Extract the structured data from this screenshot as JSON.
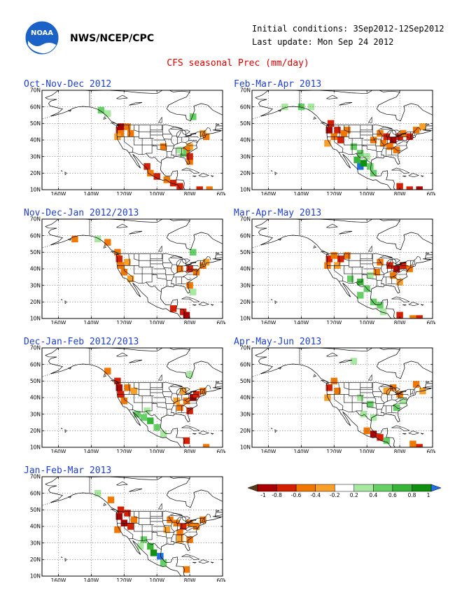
{
  "header": {
    "agency": "NWS/NCEP/CPC",
    "initial_conditions": "Initial conditions: 3Sep2012-12Sep2012",
    "last_update": "Last update: Mon Sep 24 2012",
    "title": "CFS seasonal Prec (mm/day)",
    "logo_text": "NOAA"
  },
  "axes": {
    "y_ticks": [
      "70N",
      "60N",
      "50N",
      "40N",
      "30N",
      "20N",
      "10N"
    ],
    "x_ticks": [
      "160W",
      "140W",
      "120W",
      "100W",
      "80W",
      "60W"
    ],
    "lat_range": [
      10,
      70
    ],
    "lon_range": [
      -170,
      -60
    ],
    "grid": true
  },
  "colors": {
    "title": "#e00000",
    "panel_title": "#1f3fd0",
    "anomaly": {
      "-1": "#5a3a1a",
      "-0.8": "#a80000",
      "-0.6": "#d42000",
      "-0.4": "#f07800",
      "-0.2": "#f8a028",
      "0.2": "#a8e8a0",
      "0.4": "#66d066",
      "0.6": "#38b438",
      "0.8": "#109010",
      "1": "#2070e0"
    }
  },
  "legend": {
    "labels": [
      "-1",
      "-0.8",
      "-0.6",
      "-0.4",
      "-0.2",
      "0.2",
      "0.4",
      "0.6",
      "0.8",
      "1"
    ],
    "colors": [
      "#a80000",
      "#d42000",
      "#f07800",
      "#f8a028",
      "#ffffff",
      "#a8e8a0",
      "#66d066",
      "#38b438",
      "#109010"
    ],
    "low_color": "#5a3a1a",
    "high_color": "#2070e0"
  },
  "panels": [
    {
      "title": "Oct-Nov-Dec 2012",
      "cells": [
        {
          "lon": -123,
          "lat": 46,
          "v": -0.6
        },
        {
          "lon": -122,
          "lat": 44,
          "v": -0.4
        },
        {
          "lon": -122,
          "lat": 48,
          "v": -0.8
        },
        {
          "lon": -118,
          "lat": 48,
          "v": -0.4
        },
        {
          "lon": -116,
          "lat": 44,
          "v": -0.4
        },
        {
          "lon": -124,
          "lat": 42,
          "v": -0.2
        },
        {
          "lon": -130,
          "lat": 56,
          "v": 0.2
        },
        {
          "lon": -134,
          "lat": 58,
          "v": 0.4
        },
        {
          "lon": -78,
          "lat": 54,
          "v": 0.4
        },
        {
          "lon": -80,
          "lat": 36,
          "v": -0.2
        },
        {
          "lon": -82,
          "lat": 34,
          "v": -0.4
        },
        {
          "lon": -84,
          "lat": 32,
          "v": 0.4
        },
        {
          "lon": -86,
          "lat": 34,
          "v": 0.2
        },
        {
          "lon": -80,
          "lat": 27,
          "v": -0.4
        },
        {
          "lon": -80,
          "lat": 30,
          "v": -0.6
        },
        {
          "lon": -96,
          "lat": 36,
          "v": -0.4
        },
        {
          "lon": -106,
          "lat": 24,
          "v": -0.6
        },
        {
          "lon": -104,
          "lat": 20,
          "v": -0.4
        },
        {
          "lon": -100,
          "lat": 18,
          "v": -0.6
        },
        {
          "lon": -94,
          "lat": 16,
          "v": -0.4
        },
        {
          "lon": -90,
          "lat": 14,
          "v": -0.6
        },
        {
          "lon": -86,
          "lat": 12,
          "v": -0.6
        },
        {
          "lon": -72,
          "lat": 44,
          "v": -0.2
        },
        {
          "lon": -70,
          "lat": 42,
          "v": -0.4
        },
        {
          "lon": -74,
          "lat": 10,
          "v": -0.6
        },
        {
          "lon": -68,
          "lat": 10,
          "v": -0.4
        }
      ]
    },
    {
      "title": "Feb-Mar-Apr 2013",
      "cells": [
        {
          "lon": -123,
          "lat": 46,
          "v": -0.8
        },
        {
          "lon": -122,
          "lat": 50,
          "v": -0.6
        },
        {
          "lon": -118,
          "lat": 46,
          "v": -0.6
        },
        {
          "lon": -114,
          "lat": 44,
          "v": -0.4
        },
        {
          "lon": -120,
          "lat": 42,
          "v": -0.4
        },
        {
          "lon": -116,
          "lat": 40,
          "v": -0.6
        },
        {
          "lon": -112,
          "lat": 46,
          "v": -0.4
        },
        {
          "lon": -124,
          "lat": 38,
          "v": -0.2
        },
        {
          "lon": -140,
          "lat": 60,
          "v": 0.4
        },
        {
          "lon": -134,
          "lat": 60,
          "v": 0.2
        },
        {
          "lon": -150,
          "lat": 60,
          "v": 0.2
        },
        {
          "lon": -108,
          "lat": 36,
          "v": 0.4
        },
        {
          "lon": -104,
          "lat": 32,
          "v": 0.4
        },
        {
          "lon": -100,
          "lat": 30,
          "v": 0.2
        },
        {
          "lon": -106,
          "lat": 28,
          "v": 0.6
        },
        {
          "lon": -104,
          "lat": 24,
          "v": 1
        },
        {
          "lon": -102,
          "lat": 26,
          "v": 0.8
        },
        {
          "lon": -98,
          "lat": 24,
          "v": 0.4
        },
        {
          "lon": -96,
          "lat": 20,
          "v": 0.4
        },
        {
          "lon": -92,
          "lat": 44,
          "v": -0.4
        },
        {
          "lon": -88,
          "lat": 42,
          "v": -0.6
        },
        {
          "lon": -84,
          "lat": 40,
          "v": -0.8
        },
        {
          "lon": -80,
          "lat": 42,
          "v": -0.6
        },
        {
          "lon": -86,
          "lat": 36,
          "v": -0.4
        },
        {
          "lon": -78,
          "lat": 44,
          "v": -0.4
        },
        {
          "lon": -74,
          "lat": 42,
          "v": -0.6
        },
        {
          "lon": -70,
          "lat": 46,
          "v": -0.4
        },
        {
          "lon": -90,
          "lat": 38,
          "v": -0.4
        },
        {
          "lon": -96,
          "lat": 40,
          "v": -0.4
        },
        {
          "lon": -66,
          "lat": 48,
          "v": -0.2
        },
        {
          "lon": -82,
          "lat": 34,
          "v": -0.4
        },
        {
          "lon": -80,
          "lat": 12,
          "v": -0.6
        },
        {
          "lon": -74,
          "lat": 10,
          "v": -0.6
        },
        {
          "lon": -68,
          "lat": 10,
          "v": -0.8
        }
      ]
    },
    {
      "title": "Nov-Dec-Jan 2012/2013",
      "cells": [
        {
          "lon": -123,
          "lat": 46,
          "v": -0.6
        },
        {
          "lon": -122,
          "lat": 42,
          "v": -0.4
        },
        {
          "lon": -124,
          "lat": 50,
          "v": -0.4
        },
        {
          "lon": -118,
          "lat": 44,
          "v": -0.2
        },
        {
          "lon": -120,
          "lat": 38,
          "v": -0.4
        },
        {
          "lon": -116,
          "lat": 34,
          "v": -0.2
        },
        {
          "lon": -136,
          "lat": 58,
          "v": 0.2
        },
        {
          "lon": -130,
          "lat": 56,
          "v": -0.4
        },
        {
          "lon": -150,
          "lat": 58,
          "v": -0.4
        },
        {
          "lon": -78,
          "lat": 50,
          "v": 0.4
        },
        {
          "lon": -86,
          "lat": 40,
          "v": -0.4
        },
        {
          "lon": -80,
          "lat": 40,
          "v": -0.6
        },
        {
          "lon": -76,
          "lat": 38,
          "v": -0.4
        },
        {
          "lon": -72,
          "lat": 42,
          "v": -0.4
        },
        {
          "lon": -80,
          "lat": 30,
          "v": -0.4
        },
        {
          "lon": -78,
          "lat": 26,
          "v": 0.2
        },
        {
          "lon": -90,
          "lat": 16,
          "v": -0.6
        },
        {
          "lon": -84,
          "lat": 14,
          "v": -0.6
        },
        {
          "lon": -82,
          "lat": 12,
          "v": -0.8
        },
        {
          "lon": -70,
          "lat": 44,
          "v": -0.2
        }
      ]
    },
    {
      "title": "Mar-Apr-May 2013",
      "cells": [
        {
          "lon": -123,
          "lat": 46,
          "v": -0.6
        },
        {
          "lon": -120,
          "lat": 48,
          "v": -0.4
        },
        {
          "lon": -116,
          "lat": 46,
          "v": -0.6
        },
        {
          "lon": -112,
          "lat": 48,
          "v": -0.4
        },
        {
          "lon": -124,
          "lat": 42,
          "v": -0.4
        },
        {
          "lon": -118,
          "lat": 42,
          "v": -0.2
        },
        {
          "lon": -110,
          "lat": 34,
          "v": 0.4
        },
        {
          "lon": -104,
          "lat": 32,
          "v": 0.6
        },
        {
          "lon": -100,
          "lat": 28,
          "v": 0.4
        },
        {
          "lon": -104,
          "lat": 24,
          "v": 0.4
        },
        {
          "lon": -96,
          "lat": 20,
          "v": 0.4
        },
        {
          "lon": -92,
          "lat": 18,
          "v": 0.4
        },
        {
          "lon": -98,
          "lat": 36,
          "v": 0.2
        },
        {
          "lon": -92,
          "lat": 44,
          "v": -0.4
        },
        {
          "lon": -86,
          "lat": 42,
          "v": -0.6
        },
        {
          "lon": -82,
          "lat": 40,
          "v": -0.8
        },
        {
          "lon": -84,
          "lat": 36,
          "v": -0.4
        },
        {
          "lon": -78,
          "lat": 42,
          "v": -0.6
        },
        {
          "lon": -74,
          "lat": 40,
          "v": -0.4
        },
        {
          "lon": -94,
          "lat": 38,
          "v": -0.4
        },
        {
          "lon": -80,
          "lat": 32,
          "v": -0.2
        },
        {
          "lon": -80,
          "lat": 12,
          "v": -0.6
        },
        {
          "lon": -72,
          "lat": 10,
          "v": -0.4
        },
        {
          "lon": -68,
          "lat": 10,
          "v": -0.6
        },
        {
          "lon": -90,
          "lat": 14,
          "v": 0.2
        }
      ]
    },
    {
      "title": "Dec-Jan-Feb 2012/2013",
      "cells": [
        {
          "lon": -123,
          "lat": 46,
          "v": -0.8
        },
        {
          "lon": -122,
          "lat": 42,
          "v": -0.6
        },
        {
          "lon": -124,
          "lat": 50,
          "v": -0.6
        },
        {
          "lon": -118,
          "lat": 46,
          "v": -0.4
        },
        {
          "lon": -120,
          "lat": 38,
          "v": -0.4
        },
        {
          "lon": -114,
          "lat": 44,
          "v": -0.2
        },
        {
          "lon": -130,
          "lat": 56,
          "v": -0.4
        },
        {
          "lon": -112,
          "lat": 30,
          "v": 0.4
        },
        {
          "lon": -108,
          "lat": 28,
          "v": 0.4
        },
        {
          "lon": -104,
          "lat": 26,
          "v": 0.6
        },
        {
          "lon": -100,
          "lat": 22,
          "v": 0.4
        },
        {
          "lon": -96,
          "lat": 18,
          "v": 0.2
        },
        {
          "lon": -106,
          "lat": 32,
          "v": 0.2
        },
        {
          "lon": -82,
          "lat": 38,
          "v": -0.4
        },
        {
          "lon": -78,
          "lat": 40,
          "v": -0.8
        },
        {
          "lon": -76,
          "lat": 42,
          "v": -0.6
        },
        {
          "lon": -86,
          "lat": 34,
          "v": -0.4
        },
        {
          "lon": -80,
          "lat": 32,
          "v": -0.6
        },
        {
          "lon": -84,
          "lat": 44,
          "v": -0.2
        },
        {
          "lon": -72,
          "lat": 44,
          "v": -0.4
        },
        {
          "lon": -80,
          "lat": 54,
          "v": 0.2
        },
        {
          "lon": -88,
          "lat": 38,
          "v": -0.2
        },
        {
          "lon": -82,
          "lat": 14,
          "v": -0.6
        },
        {
          "lon": -70,
          "lat": 10,
          "v": -0.4
        }
      ]
    },
    {
      "title": "Apr-May-Jun 2013",
      "cells": [
        {
          "lon": -123,
          "lat": 46,
          "v": -0.6
        },
        {
          "lon": -120,
          "lat": 50,
          "v": -0.4
        },
        {
          "lon": -118,
          "lat": 44,
          "v": -0.4
        },
        {
          "lon": -124,
          "lat": 40,
          "v": -0.2
        },
        {
          "lon": -104,
          "lat": 40,
          "v": 0.2
        },
        {
          "lon": -98,
          "lat": 36,
          "v": 0.4
        },
        {
          "lon": -102,
          "lat": 30,
          "v": 0.2
        },
        {
          "lon": -96,
          "lat": 28,
          "v": 0.2
        },
        {
          "lon": -88,
          "lat": 44,
          "v": -0.2
        },
        {
          "lon": -84,
          "lat": 46,
          "v": -0.4
        },
        {
          "lon": -80,
          "lat": 42,
          "v": -0.4
        },
        {
          "lon": -78,
          "lat": 38,
          "v": 0.2
        },
        {
          "lon": -82,
          "lat": 34,
          "v": 0.4
        },
        {
          "lon": -70,
          "lat": 48,
          "v": -0.4
        },
        {
          "lon": -66,
          "lat": 44,
          "v": -0.2
        },
        {
          "lon": -96,
          "lat": 18,
          "v": -0.8
        },
        {
          "lon": -92,
          "lat": 16,
          "v": -0.6
        },
        {
          "lon": -88,
          "lat": 14,
          "v": 0.4
        },
        {
          "lon": -100,
          "lat": 20,
          "v": -0.4
        },
        {
          "lon": -108,
          "lat": 62,
          "v": 0.2
        },
        {
          "lon": -72,
          "lat": 12,
          "v": -0.4
        },
        {
          "lon": -68,
          "lat": 10,
          "v": -0.6
        }
      ]
    },
    {
      "title": "Jan-Feb-Mar 2013",
      "cells": [
        {
          "lon": -123,
          "lat": 46,
          "v": -0.8
        },
        {
          "lon": -122,
          "lat": 50,
          "v": -0.6
        },
        {
          "lon": -118,
          "lat": 48,
          "v": -0.6
        },
        {
          "lon": -114,
          "lat": 44,
          "v": -0.4
        },
        {
          "lon": -120,
          "lat": 42,
          "v": -0.8
        },
        {
          "lon": -116,
          "lat": 40,
          "v": -0.6
        },
        {
          "lon": -124,
          "lat": 38,
          "v": -0.4
        },
        {
          "lon": -136,
          "lat": 60,
          "v": 0.2
        },
        {
          "lon": -128,
          "lat": 56,
          "v": -0.4
        },
        {
          "lon": -108,
          "lat": 32,
          "v": 0.4
        },
        {
          "lon": -104,
          "lat": 28,
          "v": 0.6
        },
        {
          "lon": -102,
          "lat": 24,
          "v": 0.8
        },
        {
          "lon": -98,
          "lat": 22,
          "v": 1
        },
        {
          "lon": -96,
          "lat": 18,
          "v": 0.4
        },
        {
          "lon": -110,
          "lat": 28,
          "v": 0.2
        },
        {
          "lon": -92,
          "lat": 44,
          "v": -0.4
        },
        {
          "lon": -88,
          "lat": 42,
          "v": -0.4
        },
        {
          "lon": -84,
          "lat": 40,
          "v": -0.6
        },
        {
          "lon": -80,
          "lat": 42,
          "v": -0.4
        },
        {
          "lon": -86,
          "lat": 36,
          "v": -0.4
        },
        {
          "lon": -76,
          "lat": 40,
          "v": -0.4
        },
        {
          "lon": -72,
          "lat": 44,
          "v": -0.4
        },
        {
          "lon": -80,
          "lat": 32,
          "v": -0.4
        },
        {
          "lon": -94,
          "lat": 38,
          "v": -0.2
        },
        {
          "lon": -86,
          "lat": 32,
          "v": -0.2
        },
        {
          "lon": -82,
          "lat": 14,
          "v": -0.4
        }
      ]
    }
  ]
}
